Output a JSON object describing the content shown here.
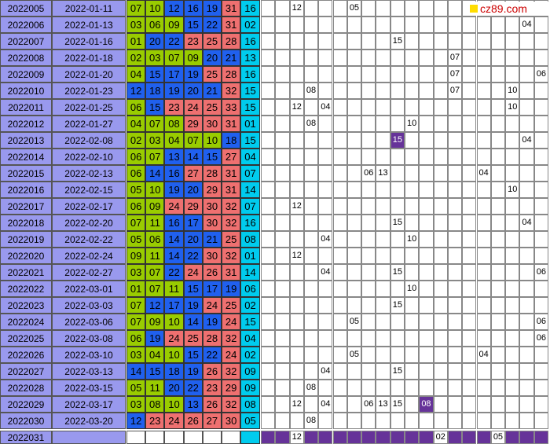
{
  "watermark": {
    "text": "cz89.com",
    "icon": "yellow-square-icon"
  },
  "rows": [
    {
      "period": "2022005",
      "date": "2022-01-11",
      "reds": [
        "07",
        "10",
        "12",
        "16",
        "19",
        "31"
      ],
      "blue": "16",
      "track": [
        [
          2,
          "12"
        ],
        [
          6,
          "05"
        ]
      ]
    },
    {
      "period": "2022006",
      "date": "2022-01-13",
      "reds": [
        "03",
        "06",
        "09",
        "15",
        "22",
        "31"
      ],
      "blue": "02",
      "track": [
        [
          18,
          "04"
        ]
      ]
    },
    {
      "period": "2022007",
      "date": "2022-01-16",
      "reds": [
        "01",
        "20",
        "22",
        "23",
        "25",
        "28"
      ],
      "blue": "16",
      "track": [
        [
          9,
          "15"
        ]
      ]
    },
    {
      "period": "2022008",
      "date": "2022-01-18",
      "reds": [
        "02",
        "03",
        "07",
        "09",
        "20",
        "21"
      ],
      "blue": "13",
      "track": [
        [
          13,
          "07"
        ]
      ]
    },
    {
      "period": "2022009",
      "date": "2022-01-20",
      "reds": [
        "04",
        "15",
        "17",
        "19",
        "25",
        "28"
      ],
      "blue": "16",
      "track": [
        [
          13,
          "07"
        ],
        [
          19,
          "06"
        ]
      ]
    },
    {
      "period": "2022010",
      "date": "2022-01-23",
      "reds": [
        "12",
        "18",
        "19",
        "20",
        "21",
        "32"
      ],
      "blue": "15",
      "track": [
        [
          3,
          "08"
        ],
        [
          13,
          "07"
        ],
        [
          17,
          "10"
        ]
      ]
    },
    {
      "period": "2022011",
      "date": "2022-01-25",
      "reds": [
        "06",
        "15",
        "23",
        "24",
        "25",
        "33"
      ],
      "blue": "15",
      "track": [
        [
          2,
          "12"
        ],
        [
          4,
          "04"
        ],
        [
          17,
          "10"
        ]
      ]
    },
    {
      "period": "2022012",
      "date": "2022-01-27",
      "reds": [
        "04",
        "07",
        "08",
        "29",
        "30",
        "31"
      ],
      "blue": "01",
      "track": [
        [
          3,
          "08"
        ],
        [
          10,
          "10"
        ]
      ]
    },
    {
      "period": "2022013",
      "date": "2022-02-08",
      "reds": [
        "02",
        "03",
        "04",
        "07",
        "10",
        "18"
      ],
      "blue": "15",
      "track": [
        [
          9,
          "15",
          true
        ],
        [
          18,
          "04"
        ]
      ]
    },
    {
      "period": "2022014",
      "date": "2022-02-10",
      "reds": [
        "06",
        "07",
        "13",
        "14",
        "15",
        "27"
      ],
      "blue": "04",
      "track": []
    },
    {
      "period": "2022015",
      "date": "2022-02-13",
      "reds": [
        "06",
        "14",
        "16",
        "27",
        "28",
        "31"
      ],
      "blue": "07",
      "track": [
        [
          7,
          "06"
        ],
        [
          8,
          "13"
        ],
        [
          15,
          "04"
        ]
      ]
    },
    {
      "period": "2022016",
      "date": "2022-02-15",
      "reds": [
        "05",
        "10",
        "19",
        "20",
        "29",
        "31"
      ],
      "blue": "14",
      "track": [
        [
          17,
          "10"
        ]
      ]
    },
    {
      "period": "2022017",
      "date": "2022-02-17",
      "reds": [
        "06",
        "09",
        "24",
        "29",
        "30",
        "32"
      ],
      "blue": "07",
      "track": [
        [
          2,
          "12"
        ]
      ]
    },
    {
      "period": "2022018",
      "date": "2022-02-20",
      "reds": [
        "07",
        "11",
        "16",
        "17",
        "30",
        "32"
      ],
      "blue": "16",
      "track": [
        [
          9,
          "15"
        ],
        [
          18,
          "04"
        ]
      ]
    },
    {
      "period": "2022019",
      "date": "2022-02-22",
      "reds": [
        "05",
        "06",
        "14",
        "20",
        "21",
        "25"
      ],
      "blue": "08",
      "track": [
        [
          4,
          "04"
        ],
        [
          10,
          "10"
        ]
      ]
    },
    {
      "period": "2022020",
      "date": "2022-02-24",
      "reds": [
        "09",
        "11",
        "14",
        "22",
        "30",
        "32"
      ],
      "blue": "01",
      "track": [
        [
          2,
          "12"
        ]
      ]
    },
    {
      "period": "2022021",
      "date": "2022-02-27",
      "reds": [
        "03",
        "07",
        "22",
        "24",
        "26",
        "31"
      ],
      "blue": "14",
      "track": [
        [
          4,
          "04"
        ],
        [
          9,
          "15"
        ],
        [
          19,
          "06"
        ]
      ]
    },
    {
      "period": "2022022",
      "date": "2022-03-01",
      "reds": [
        "01",
        "07",
        "11",
        "15",
        "17",
        "19"
      ],
      "blue": "06",
      "track": [
        [
          10,
          "10"
        ]
      ]
    },
    {
      "period": "2022023",
      "date": "2022-03-03",
      "reds": [
        "07",
        "12",
        "17",
        "19",
        "24",
        "25"
      ],
      "blue": "02",
      "track": [
        [
          9,
          "15"
        ]
      ]
    },
    {
      "period": "2022024",
      "date": "2022-03-06",
      "reds": [
        "07",
        "09",
        "10",
        "14",
        "19",
        "24"
      ],
      "blue": "15",
      "track": [
        [
          6,
          "05"
        ],
        [
          19,
          "06"
        ]
      ]
    },
    {
      "period": "2022025",
      "date": "2022-03-08",
      "reds": [
        "06",
        "19",
        "24",
        "25",
        "28",
        "32"
      ],
      "blue": "04",
      "track": [
        [
          19,
          "06"
        ]
      ]
    },
    {
      "period": "2022026",
      "date": "2022-03-10",
      "reds": [
        "03",
        "04",
        "10",
        "15",
        "22",
        "24"
      ],
      "blue": "02",
      "track": [
        [
          6,
          "05"
        ],
        [
          15,
          "04"
        ]
      ]
    },
    {
      "period": "2022027",
      "date": "2022-03-13",
      "reds": [
        "14",
        "15",
        "18",
        "19",
        "26",
        "32"
      ],
      "blue": "09",
      "track": [
        [
          4,
          "04"
        ],
        [
          9,
          "15"
        ]
      ]
    },
    {
      "period": "2022028",
      "date": "2022-03-15",
      "reds": [
        "05",
        "11",
        "20",
        "22",
        "23",
        "29"
      ],
      "blue": "09",
      "track": [
        [
          3,
          "08"
        ]
      ]
    },
    {
      "period": "2022029",
      "date": "2022-03-17",
      "reds": [
        "03",
        "08",
        "10",
        "13",
        "26",
        "32"
      ],
      "blue": "08",
      "track": [
        [
          2,
          "12"
        ],
        [
          4,
          "04"
        ],
        [
          7,
          "06"
        ],
        [
          8,
          "13"
        ],
        [
          9,
          "15"
        ],
        [
          11,
          "08",
          true
        ]
      ]
    },
    {
      "period": "2022030",
      "date": "2022-03-20",
      "reds": [
        "12",
        "23",
        "24",
        "26",
        "27",
        "30"
      ],
      "blue": "05",
      "track": [
        [
          3,
          "08"
        ]
      ]
    }
  ],
  "last_row": {
    "period": "2022031",
    "track": [
      [
        2,
        "12"
      ],
      [
        12,
        "02"
      ],
      [
        16,
        "05"
      ]
    ]
  },
  "colors": {
    "green": "#99cc00",
    "blue": "#2060ee",
    "red": "#ee7070",
    "cyan": "#00ccee",
    "purple": "#663399",
    "period_bg": "#9999ee"
  }
}
